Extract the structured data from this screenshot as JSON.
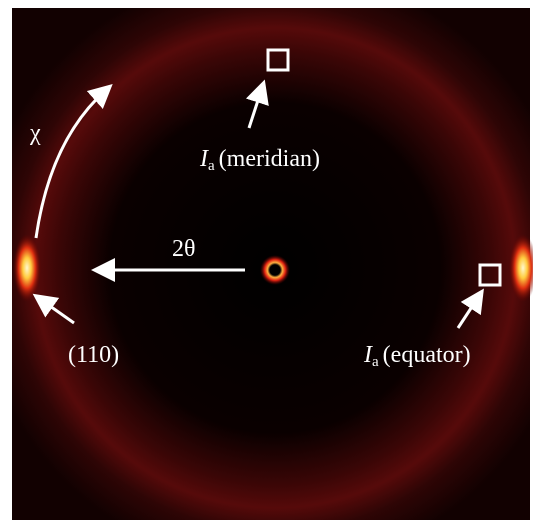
{
  "labels": {
    "chi": "χ",
    "two_theta": "2θ",
    "reflection": "(110)",
    "meridian": {
      "symbol": "I",
      "subscript": "a",
      "text": "(meridian)"
    },
    "equator": {
      "symbol": "I",
      "subscript": "a",
      "text": "(equator)"
    }
  }
}
